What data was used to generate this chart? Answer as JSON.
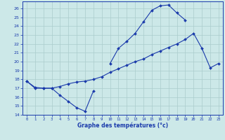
{
  "xlabel": "Graphe des températures (°c)",
  "bg_color": "#cce8e8",
  "line_color": "#1a3aab",
  "grid_color": "#aacccc",
  "xlim": [
    -0.5,
    23.5
  ],
  "ylim": [
    14,
    26.8
  ],
  "yticks": [
    14,
    15,
    16,
    17,
    18,
    19,
    20,
    21,
    22,
    23,
    24,
    25,
    26
  ],
  "xticks": [
    0,
    1,
    2,
    3,
    4,
    5,
    6,
    7,
    8,
    9,
    10,
    11,
    12,
    13,
    14,
    15,
    16,
    17,
    18,
    19,
    20,
    21,
    22,
    23
  ],
  "line1_x": [
    0,
    1,
    2,
    3,
    4,
    5,
    6,
    7,
    8
  ],
  "line1_y": [
    17.8,
    17.0,
    17.0,
    17.0,
    16.2,
    15.5,
    14.8,
    14.4,
    16.7
  ],
  "line2_x": [
    0,
    1,
    2,
    3,
    4,
    5,
    6,
    7,
    8,
    9,
    10,
    11,
    12,
    13,
    14,
    15,
    16,
    17,
    18,
    19,
    20,
    21,
    22,
    23
  ],
  "line2_y": [
    17.8,
    17.1,
    17.0,
    17.0,
    17.2,
    17.5,
    17.7,
    17.8,
    18.0,
    18.3,
    18.8,
    19.2,
    19.6,
    20.0,
    20.3,
    20.8,
    21.2,
    21.6,
    22.0,
    22.5,
    23.2,
    21.5,
    19.3,
    19.8
  ],
  "line3_x": [
    10,
    11,
    12,
    13,
    14,
    15,
    16,
    17,
    18,
    19
  ],
  "line3_y": [
    19.8,
    21.5,
    22.3,
    23.2,
    24.5,
    25.8,
    26.3,
    26.4,
    25.5,
    24.7
  ],
  "marker_size": 2.0,
  "line_width": 0.8,
  "xlabel_fontsize": 5.5,
  "xtick_fontsize": 4.0,
  "ytick_fontsize": 4.5
}
